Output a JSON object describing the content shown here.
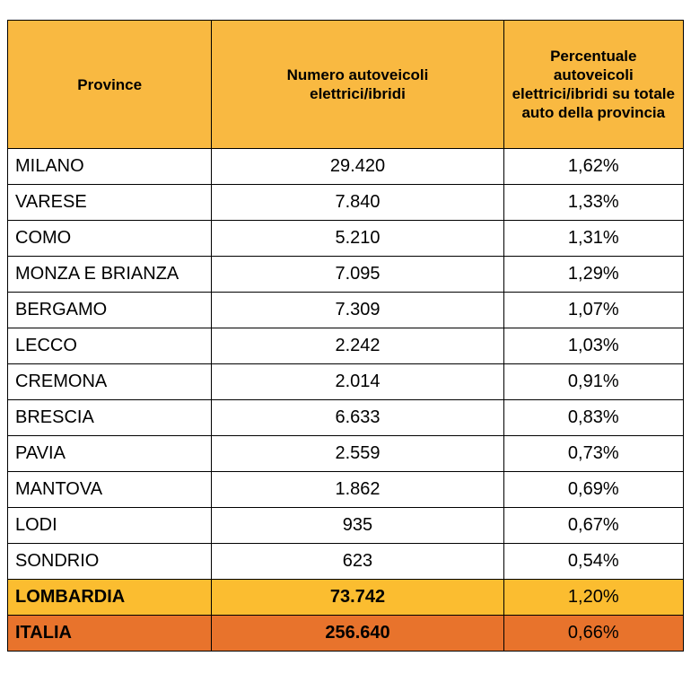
{
  "table": {
    "header": [
      "Province",
      "Numero autoveicoli elettrici/ibridi",
      "Percentuale autoveicoli elettrici/ibridi su totale auto della provincia"
    ],
    "rows": [
      [
        "MILANO",
        "29.420",
        "1,62%"
      ],
      [
        "VARESE",
        "7.840",
        "1,33%"
      ],
      [
        "COMO",
        "5.210",
        "1,31%"
      ],
      [
        "MONZA E BRIANZA",
        "7.095",
        "1,29%"
      ],
      [
        "BERGAMO",
        "7.309",
        "1,07%"
      ],
      [
        "LECCO",
        "2.242",
        "1,03%"
      ],
      [
        "CREMONA",
        "2.014",
        "0,91%"
      ],
      [
        "BRESCIA",
        "6.633",
        "0,83%"
      ],
      [
        "PAVIA",
        "2.559",
        "0,73%"
      ],
      [
        "MANTOVA",
        "1.862",
        "0,69%"
      ],
      [
        "LODI",
        "935",
        "0,67%"
      ],
      [
        "SONDRIO",
        "623",
        "0,54%"
      ]
    ],
    "region_row": [
      "LOMBARDIA",
      "73.742",
      "1,20%"
    ],
    "country_row": [
      "ITALIA",
      "256.640",
      "0,66%"
    ]
  }
}
